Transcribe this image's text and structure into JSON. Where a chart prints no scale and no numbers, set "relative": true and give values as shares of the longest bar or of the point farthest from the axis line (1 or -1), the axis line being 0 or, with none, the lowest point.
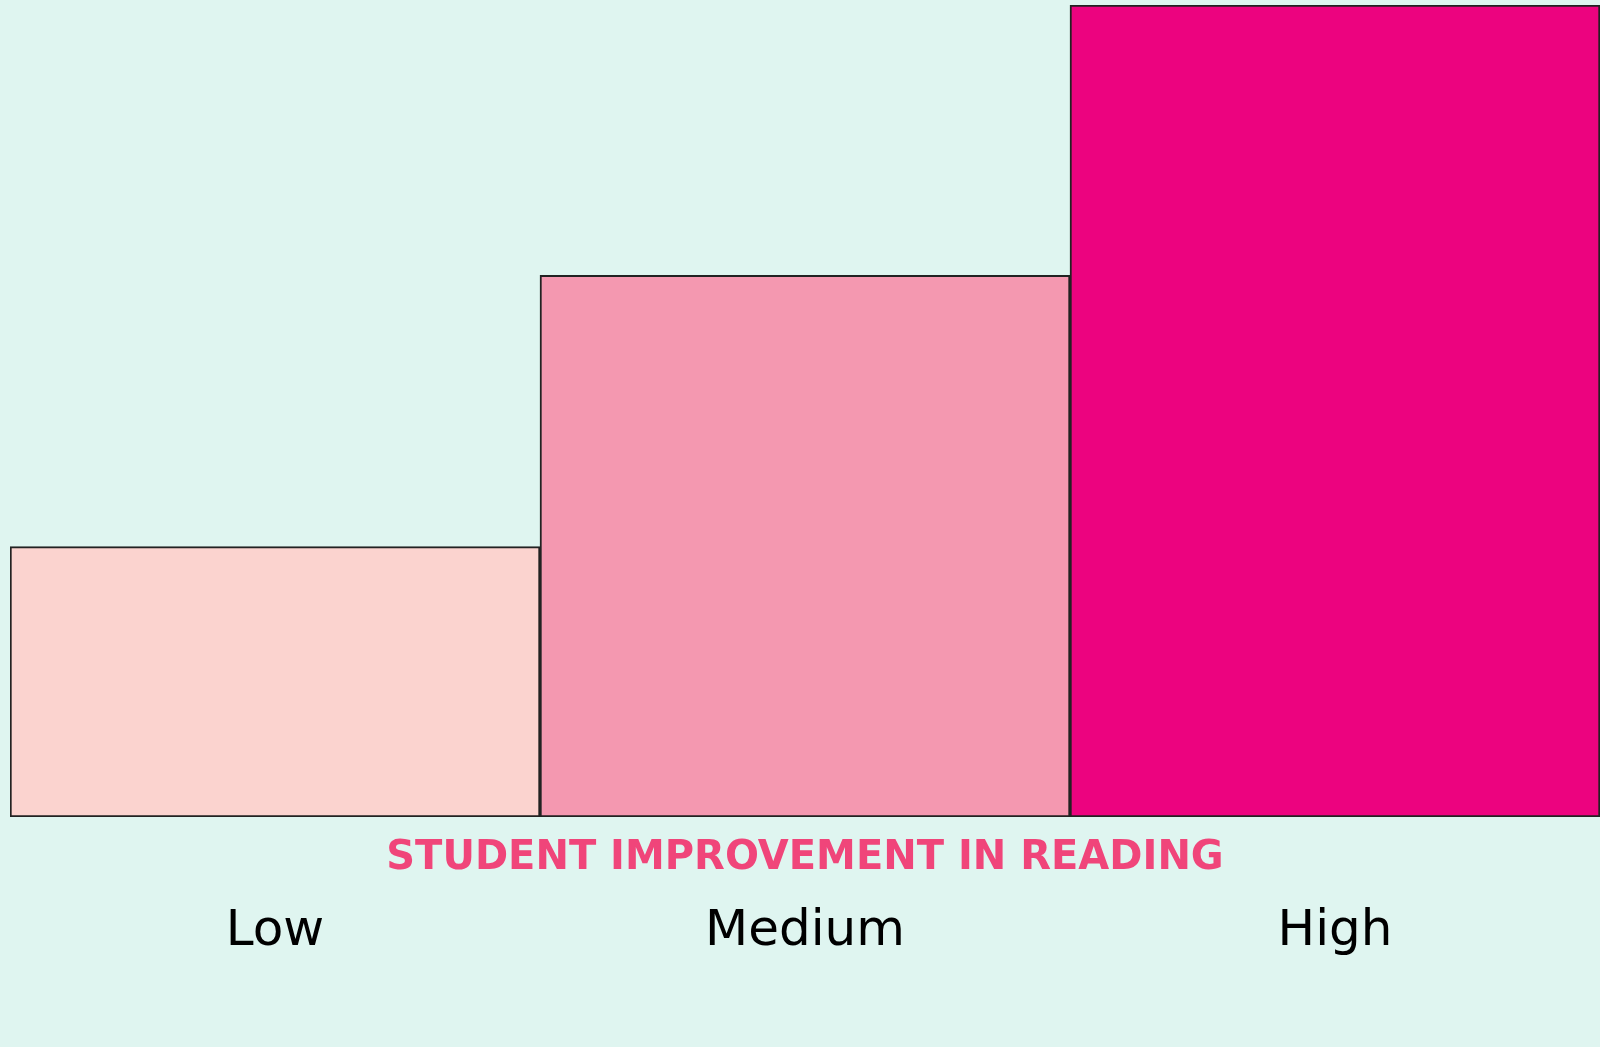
{
  "chart_data": {
    "type": "bar",
    "relative": true,
    "xlabel": "STUDENT IMPROVEMENT IN READING",
    "categories": [
      "Low",
      "Medium",
      "High"
    ],
    "values": [
      0.333,
      0.667,
      1
    ],
    "colors": [
      "#fbd3cf",
      "#f498b0",
      "#ec037f"
    ],
    "grid": false,
    "legend": false
  }
}
